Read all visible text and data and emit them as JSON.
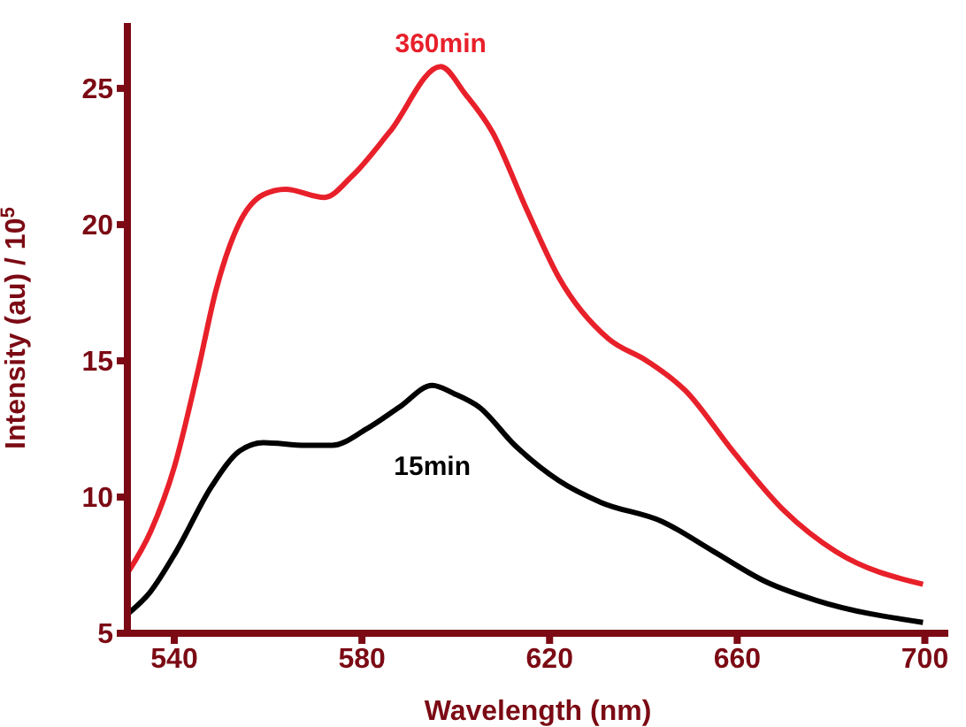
{
  "chart_data": {
    "type": "line",
    "xlabel": "Wavelength (nm)",
    "ylabel": "Intensity (au) / 10$^{5}$",
    "xlim": [
      530,
      705
    ],
    "xticks": [
      540,
      580,
      620,
      660,
      700
    ],
    "ylim": [
      5,
      27.4
    ],
    "yticks": [
      5,
      10,
      15,
      20,
      25
    ],
    "grid": false,
    "marker": "none",
    "line_style": "solid",
    "series": [
      {
        "name": "360min",
        "color": "#e8202a",
        "x": [
          530,
          535,
          540,
          545,
          548.9,
          553.7,
          559,
          563.7,
          572,
          578,
          585.9,
          596.8,
          602,
          607.8,
          615,
          622,
          632.6,
          640.7,
          649,
          659,
          670,
          681,
          699.6
        ],
        "values": [
          7.2,
          8.75,
          11.1,
          14.6,
          17.6,
          20,
          21.1,
          21.3,
          21,
          21.8,
          23.4,
          25.8,
          24.8,
          23.4,
          20.6,
          18.05,
          15.8,
          15,
          13.9,
          11.7,
          9.5,
          8,
          6.8
        ]
      },
      {
        "name": "15min",
        "color": "#000000",
        "x": [
          530,
          534.8,
          540.4,
          548,
          554,
          559,
          568,
          573.7,
          581,
          588,
          595,
          599.6,
          605,
          612.6,
          622,
          631,
          644,
          655,
          666,
          677,
          699.6
        ],
        "values": [
          5.7,
          6.5,
          8,
          10.4,
          11.7,
          12,
          11.9,
          11.9,
          12.5,
          13.3,
          14.1,
          13.8,
          13.3,
          11.9,
          10.6,
          9.8,
          9.1,
          8,
          6.9,
          6.2,
          5.4
        ]
      }
    ]
  }
}
